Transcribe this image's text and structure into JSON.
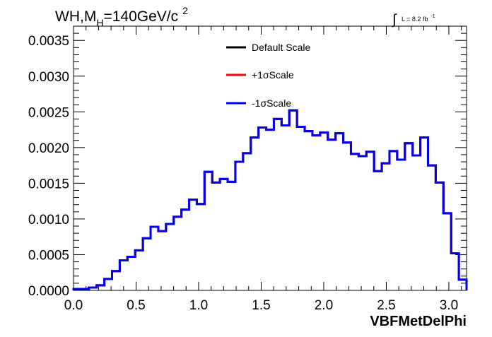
{
  "chart_data": {
    "type": "histogram",
    "title_parts": {
      "pre": "WH,M",
      "sub": "H",
      "mid": "=140GeV/c",
      "sup": "2"
    },
    "lumi": {
      "integral": "∫",
      "text": "L = 8.2 fb",
      "sup": "-1"
    },
    "xlabel": "VBFMetDelPhi",
    "ylabel": "",
    "xlim": [
      0,
      3.1416
    ],
    "ylim": [
      0,
      0.0037
    ],
    "x_ticks": [
      "0.0",
      "0.5",
      "1.0",
      "1.5",
      "2.0",
      "2.5",
      "3.0"
    ],
    "x_tick_values": [
      0,
      0.5,
      1.0,
      1.5,
      2.0,
      2.5,
      3.0
    ],
    "y_ticks": [
      "0.0000",
      "0.0005",
      "0.0010",
      "0.0015",
      "0.0020",
      "0.0025",
      "0.0030",
      "0.0035"
    ],
    "y_tick_values": [
      0,
      0.0005,
      0.001,
      0.0015,
      0.002,
      0.0025,
      0.003,
      0.0035
    ],
    "grid": false,
    "legend_position": "top-center",
    "bin_edges_range": [
      0,
      3.1416
    ],
    "series": [
      {
        "name": "Default Scale",
        "color": "#000000",
        "values": [
          2e-05,
          2e-05,
          4e-05,
          7e-05,
          0.00016,
          0.00027,
          0.00042,
          0.00047,
          0.00056,
          0.00073,
          0.00089,
          0.00083,
          0.00093,
          0.00103,
          0.00113,
          0.00127,
          0.00121,
          0.00166,
          0.00151,
          0.00156,
          0.00152,
          0.0018,
          0.00192,
          0.00214,
          0.00228,
          0.00225,
          0.0024,
          0.00231,
          0.00252,
          0.00229,
          0.00223,
          0.00217,
          0.00221,
          0.00211,
          0.0022,
          0.00207,
          0.00191,
          0.00188,
          0.00194,
          0.00167,
          0.00178,
          0.00195,
          0.00183,
          0.00206,
          0.00189,
          0.00214,
          0.00175,
          0.00151,
          0.00108,
          0.00052,
          0.00015
        ]
      },
      {
        "name": "+1σScale",
        "color": "#ff0000",
        "values": [
          2e-05,
          2e-05,
          4e-05,
          7e-05,
          0.00016,
          0.00027,
          0.00042,
          0.00047,
          0.00056,
          0.00073,
          0.00089,
          0.00083,
          0.00093,
          0.00103,
          0.00113,
          0.00127,
          0.00121,
          0.00166,
          0.00151,
          0.00156,
          0.00152,
          0.0018,
          0.00192,
          0.00214,
          0.00228,
          0.00225,
          0.0024,
          0.00231,
          0.00252,
          0.00229,
          0.00223,
          0.00217,
          0.00221,
          0.00211,
          0.0022,
          0.00207,
          0.00191,
          0.00188,
          0.00194,
          0.00167,
          0.00178,
          0.00195,
          0.00183,
          0.00206,
          0.00189,
          0.00214,
          0.00175,
          0.00151,
          0.00108,
          0.00052,
          0.00015
        ]
      },
      {
        "name": "-1σScale",
        "color": "#0000ee",
        "values": [
          2e-05,
          2e-05,
          4e-05,
          7e-05,
          0.00016,
          0.00027,
          0.00042,
          0.00047,
          0.00056,
          0.00073,
          0.00089,
          0.00083,
          0.00093,
          0.00103,
          0.00113,
          0.00127,
          0.00121,
          0.00166,
          0.00151,
          0.00156,
          0.00152,
          0.0018,
          0.00192,
          0.00214,
          0.00228,
          0.00225,
          0.0024,
          0.00231,
          0.00252,
          0.00229,
          0.00223,
          0.00217,
          0.00221,
          0.00211,
          0.0022,
          0.00207,
          0.00191,
          0.00188,
          0.00194,
          0.00167,
          0.00178,
          0.00195,
          0.00183,
          0.00206,
          0.00189,
          0.00214,
          0.00175,
          0.00151,
          0.00108,
          0.00052,
          0.00015
        ]
      }
    ]
  }
}
